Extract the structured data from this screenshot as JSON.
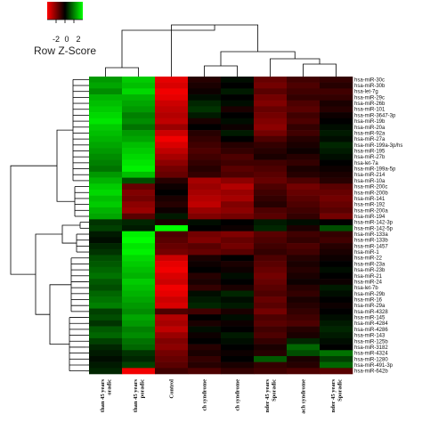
{
  "chart_data": {
    "type": "heatmap",
    "color_key": {
      "title": "Row Z-Score",
      "ticks": [
        "-2",
        "0",
        "2"
      ],
      "low_color": "#ff0000",
      "mid_color": "#000000",
      "high_color": "#00ff00"
    },
    "columns": [
      [
        "than 45 years",
        "oradic"
      ],
      [
        "than 45 years",
        "poradic"
      ],
      [
        "Control"
      ],
      [
        "ch syndrome"
      ],
      [
        "ch syndrome"
      ],
      [
        "nder 45 years",
        "Sporadic"
      ],
      [
        "ach syndrome"
      ],
      [
        "nder 45 years",
        "Sporadic"
      ]
    ],
    "rows": [
      "hsa-miR-30c",
      "hsa-miR-30b",
      "hsa-let-7g",
      "hsa-miR-29c",
      "hsa-miR-26b",
      "hsa-miR-101",
      "hsa-miR-3647-3p",
      "hsa-miR-19b",
      "hsa-miR-20a",
      "hsa-miR-92a",
      "hsa-miR-27a",
      "hsa-miR-199a-3p/hs",
      "hsa-miR-195",
      "hsa-miR-27b",
      "hsa-let-7a",
      "hsa-miR-199a-5p",
      "hsa-miR-214",
      "hsa-miR-10a",
      "hsa-miR-200c",
      "hsa-miR-200b",
      "hsa-miR-141",
      "hsa-miR-192",
      "hsa-miR-200a",
      "hsa-miR-194",
      "hsa-miR-142-3p",
      "hsa-miR-142-5p",
      "hsa-miR-133a",
      "hsa-miR-133b",
      "hsa-miR-1457",
      "hsa-miR-1",
      "hsa-miR-22",
      "hsa-miR-23a",
      "hsa-miR-23b",
      "hsa-miR-21",
      "hsa-miR-24",
      "hsa-let-7b",
      "hsa-miR-29b",
      "hsa-miR-16",
      "hsa-miR-29a",
      "hsa-miR-4328",
      "hsa-miR-145",
      "hsa-miR-4284",
      "hsa-miR-4286",
      "hsa-miR-143",
      "hsa-miR-125b",
      "hsa-miR-3182",
      "hsa-miR-4324",
      "hsa-miR-1280",
      "hsa-miR-491-3p",
      "hsa-miR-642b"
    ],
    "values": [
      [
        1.2,
        1.6,
        -1.8,
        -0.3,
        0.1,
        -0.8,
        -0.5,
        -0.4
      ],
      [
        1.3,
        1.5,
        -1.7,
        -0.2,
        0.0,
        -0.9,
        -0.6,
        -0.3
      ],
      [
        1.1,
        1.7,
        -1.9,
        -0.1,
        0.2,
        -0.7,
        -0.5,
        -0.5
      ],
      [
        1.4,
        1.4,
        -1.8,
        0.1,
        0.0,
        -0.9,
        -0.4,
        -0.4
      ],
      [
        1.5,
        1.3,
        -1.6,
        0.3,
        0.1,
        -1.0,
        -0.6,
        -0.2
      ],
      [
        1.6,
        1.2,
        -1.5,
        0.4,
        -0.2,
        -0.8,
        -0.7,
        -0.3
      ],
      [
        1.7,
        1.0,
        -1.4,
        0.2,
        0.0,
        -0.9,
        -0.5,
        -0.1
      ],
      [
        1.8,
        1.1,
        -1.5,
        -0.2,
        0.1,
        -1.0,
        -0.6,
        0.0
      ],
      [
        1.6,
        0.9,
        -1.2,
        0.0,
        -0.1,
        -1.1,
        -0.4,
        0.1
      ],
      [
        1.5,
        1.2,
        -1.6,
        -0.3,
        0.2,
        -0.9,
        -0.5,
        0.2
      ],
      [
        1.4,
        1.3,
        -1.9,
        -0.4,
        0.0,
        -0.6,
        -0.3,
        0.1
      ],
      [
        1.3,
        1.5,
        -1.7,
        -0.5,
        -0.3,
        -0.4,
        -0.2,
        0.3
      ],
      [
        1.2,
        1.6,
        -1.5,
        -0.6,
        -0.4,
        -0.3,
        -0.1,
        0.2
      ],
      [
        1.1,
        1.7,
        -1.3,
        -0.5,
        -0.6,
        -0.2,
        -0.3,
        0.1
      ],
      [
        1.0,
        1.8,
        -1.1,
        -0.4,
        -0.5,
        -0.5,
        -0.4,
        0.0
      ],
      [
        0.9,
        1.9,
        -0.9,
        -0.3,
        -0.7,
        -0.6,
        -0.2,
        -0.1
      ],
      [
        1.2,
        1.5,
        -0.8,
        -0.4,
        -0.6,
        -0.7,
        -0.3,
        -0.2
      ],
      [
        1.4,
        0.6,
        -0.3,
        -1.3,
        -1.1,
        -0.8,
        -0.6,
        -0.3
      ],
      [
        1.6,
        -0.8,
        -0.1,
        -1.2,
        -1.4,
        -0.6,
        -0.9,
        -0.7
      ],
      [
        1.7,
        -1.0,
        0.0,
        -1.3,
        -1.2,
        -0.5,
        -0.8,
        -0.8
      ],
      [
        1.5,
        -0.9,
        -0.2,
        -1.4,
        -1.3,
        -0.4,
        -0.7,
        -0.9
      ],
      [
        1.6,
        -1.1,
        -0.3,
        -1.5,
        -1.0,
        -0.3,
        -0.6,
        -0.8
      ],
      [
        1.4,
        -1.2,
        -0.1,
        -1.2,
        -1.1,
        -0.6,
        -0.5,
        -0.7
      ],
      [
        1.3,
        -0.7,
        0.2,
        -1.0,
        -0.9,
        -0.7,
        -0.4,
        -0.9
      ],
      [
        0.4,
        0.3,
        -0.2,
        0.1,
        0.0,
        0.2,
        0.1,
        0.0
      ],
      [
        0.5,
        0.2,
        2.0,
        0.0,
        -0.1,
        0.3,
        -0.2,
        0.6
      ],
      [
        0.2,
        1.9,
        -0.6,
        -0.9,
        -1.0,
        -0.7,
        -0.5,
        -0.4
      ],
      [
        0.1,
        2.0,
        -0.7,
        -1.0,
        -0.8,
        -0.6,
        -0.4,
        -0.5
      ],
      [
        0.3,
        1.8,
        -0.8,
        -0.7,
        -0.9,
        -0.5,
        -0.6,
        -0.3
      ],
      [
        0.4,
        1.9,
        -0.9,
        -0.8,
        -0.7,
        -0.4,
        -0.5,
        -0.2
      ],
      [
        0.6,
        1.7,
        -1.6,
        -0.2,
        0.0,
        -0.6,
        -0.3,
        -0.1
      ],
      [
        0.7,
        1.6,
        -1.8,
        -0.1,
        -0.2,
        -0.7,
        -0.2,
        0.0
      ],
      [
        0.8,
        1.5,
        -1.9,
        0.0,
        -0.1,
        -0.8,
        -0.3,
        0.1
      ],
      [
        0.9,
        1.4,
        -1.7,
        -0.3,
        0.1,
        -0.9,
        -0.2,
        0.0
      ],
      [
        0.7,
        1.6,
        -1.6,
        -0.2,
        0.0,
        -0.8,
        -0.1,
        -0.1
      ],
      [
        0.6,
        1.5,
        -1.9,
        -0.4,
        -0.2,
        -0.7,
        -0.3,
        0.2
      ],
      [
        0.8,
        1.4,
        -1.8,
        0.1,
        0.3,
        -0.6,
        -0.4,
        0.1
      ],
      [
        0.9,
        1.3,
        -1.6,
        0.2,
        0.1,
        -0.8,
        -0.2,
        0.0
      ],
      [
        1.0,
        1.2,
        -1.7,
        0.3,
        0.2,
        -0.7,
        -0.3,
        -0.1
      ],
      [
        0.5,
        1.1,
        -0.6,
        -0.5,
        -0.2,
        -0.9,
        -0.4,
        0.0
      ],
      [
        0.6,
        1.3,
        -1.4,
        0.0,
        0.1,
        -0.6,
        -0.5,
        0.1
      ],
      [
        0.4,
        1.2,
        -1.3,
        -0.2,
        -0.1,
        -0.7,
        -0.6,
        0.2
      ],
      [
        0.7,
        1.0,
        -1.5,
        0.1,
        0.0,
        -0.5,
        -0.3,
        0.3
      ],
      [
        0.8,
        1.1,
        -1.2,
        -0.1,
        0.2,
        -0.6,
        -0.2,
        0.2
      ],
      [
        0.5,
        0.9,
        -1.0,
        0.0,
        0.1,
        -0.4,
        0.3,
        0.1
      ],
      [
        0.3,
        0.8,
        -1.1,
        -0.3,
        0.0,
        -0.2,
        0.8,
        0.0
      ],
      [
        0.2,
        0.4,
        -0.9,
        -0.2,
        -0.1,
        -0.3,
        0.6,
        0.9
      ],
      [
        0.1,
        0.3,
        -0.8,
        -0.4,
        0.0,
        0.7,
        -0.2,
        0.5
      ],
      [
        0.2,
        0.5,
        -0.7,
        -0.3,
        -0.2,
        -0.4,
        -0.3,
        0.8
      ],
      [
        0.3,
        -1.9,
        -0.5,
        -0.6,
        -0.4,
        -0.5,
        -0.6,
        -0.7
      ]
    ]
  }
}
